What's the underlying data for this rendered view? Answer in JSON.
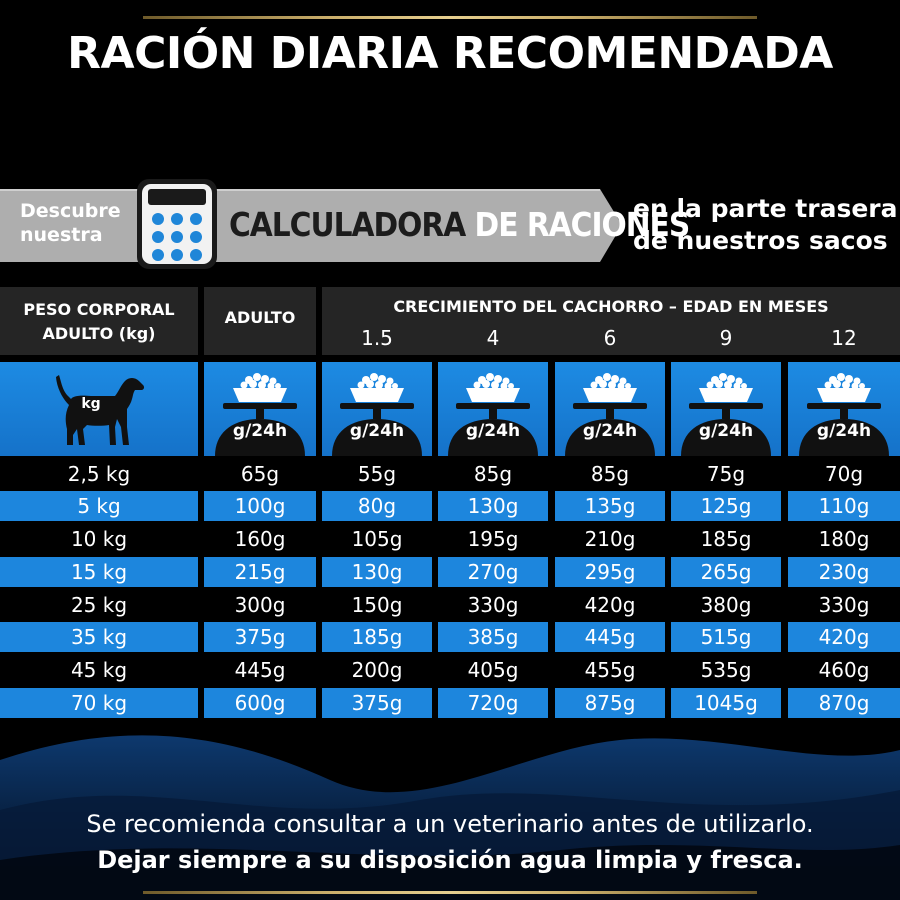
{
  "title": "RACIÓN DIARIA RECOMENDADA",
  "banner": {
    "left_line1": "Descubre",
    "left_line2": "nuestra",
    "main_part1": "CALCULADORA",
    "main_part2": "DE RACIONES",
    "right_line1": "en la parte trasera",
    "right_line2": "de nuestros sacos",
    "icon": "calculator-icon"
  },
  "table": {
    "header_weight_line1": "PESO CORPORAL",
    "header_weight_line2": "ADULTO (kg)",
    "header_adult": "ADULTO",
    "header_growth": "CRECIMIENTO DEL CACHORRO – EDAD EN MESES",
    "months": [
      "1.5",
      "4",
      "6",
      "9",
      "12"
    ],
    "dog_icon_label": "kg",
    "scale_icon_label": "g/24h",
    "rows": [
      [
        "2,5 kg",
        "65g",
        "55g",
        "85g",
        "85g",
        "75g",
        "70g"
      ],
      [
        "5 kg",
        "100g",
        "80g",
        "130g",
        "135g",
        "125g",
        "110g"
      ],
      [
        "10 kg",
        "160g",
        "105g",
        "195g",
        "210g",
        "185g",
        "180g"
      ],
      [
        "15 kg",
        "215g",
        "130g",
        "270g",
        "295g",
        "265g",
        "230g"
      ],
      [
        "25 kg",
        "300g",
        "150g",
        "330g",
        "420g",
        "380g",
        "330g"
      ],
      [
        "35 kg",
        "375g",
        "185g",
        "385g",
        "445g",
        "515g",
        "420g"
      ],
      [
        "45 kg",
        "445g",
        "200g",
        "405g",
        "455g",
        "535g",
        "460g"
      ],
      [
        "70 kg",
        "600g",
        "375g",
        "720g",
        "875g",
        "1045g",
        "870g"
      ]
    ]
  },
  "footer": {
    "line1": "Se recomienda consultar a un veterinario antes de utilizarlo.",
    "line2": "Dejar siempre a su disposición agua limpia y fresca."
  },
  "colors": {
    "background": "#000000",
    "accent_blue": "#1d86dd",
    "header_gray": "#252525",
    "banner_gray": "#aeaeae",
    "gold": "#c9ad6a"
  }
}
